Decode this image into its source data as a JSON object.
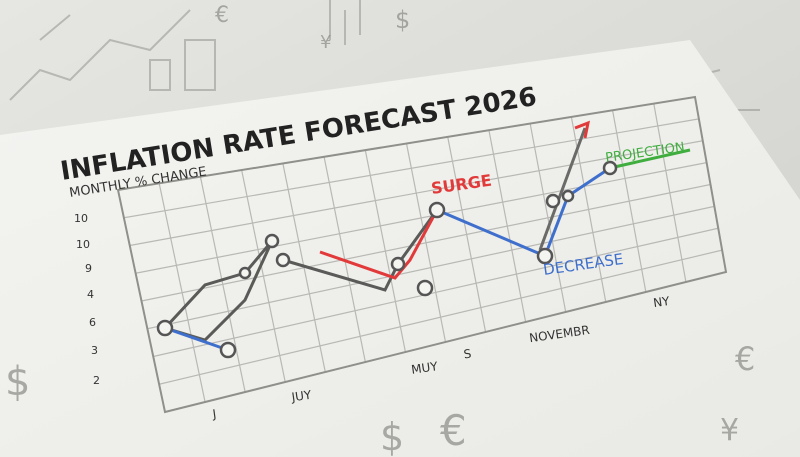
{
  "title": "INFLATION RATE FORECAST 2026",
  "subtitle": "MONTHLY % CHANGE",
  "y_labels": [
    "10",
    "10",
    "9",
    "4",
    "6",
    "3",
    "2"
  ],
  "x_labels": [
    "J",
    "JUY",
    "MUY",
    "S",
    "NOVEMBR",
    "NY"
  ],
  "annotations": {
    "surge": "SURGE",
    "decrease": "DECREASE",
    "projection": "PROJECTION"
  },
  "background_symbols": [
    "€",
    "$",
    "¥",
    "$",
    "€",
    "$",
    "€",
    "¥"
  ]
}
